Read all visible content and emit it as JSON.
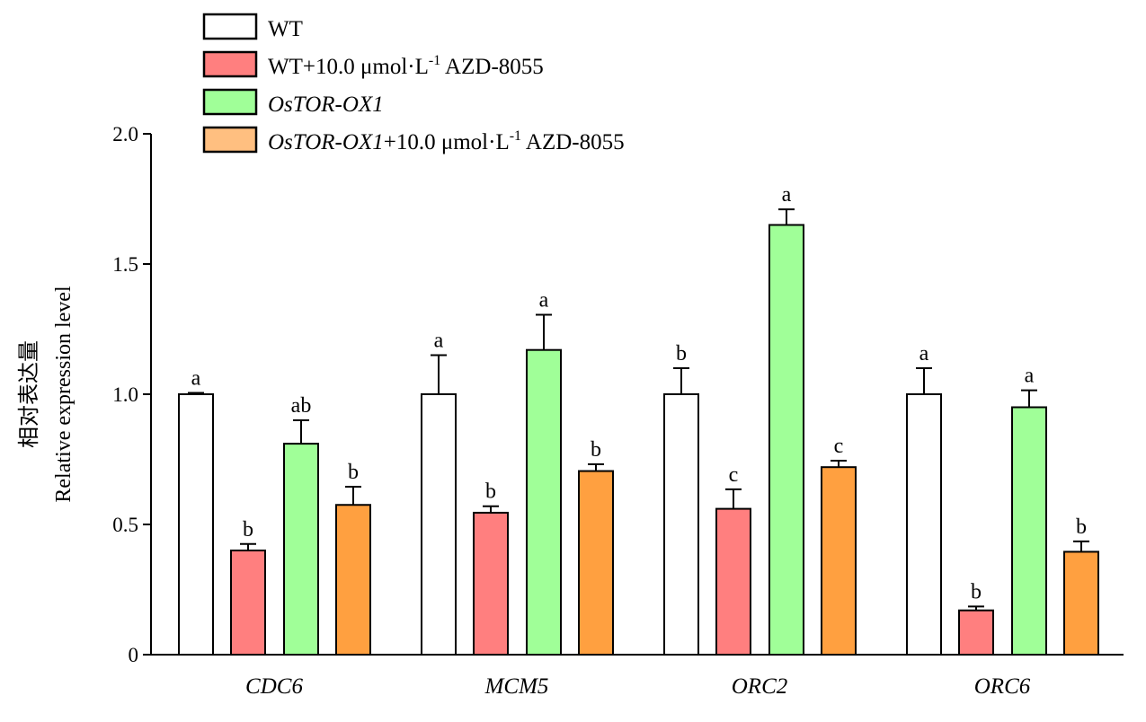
{
  "chart_data": {
    "type": "bar",
    "title": "",
    "xlabel": "",
    "ylabel_cn": "相对表达量",
    "ylabel": "Relative expression level",
    "ylim": [
      0,
      2.0
    ],
    "yticks": [
      0,
      0.5,
      1.0,
      1.5,
      2.0
    ],
    "ytick_labels": [
      "0",
      "0.5",
      "1.0",
      "1.5",
      "2.0"
    ],
    "grid": false,
    "legend_position": "top-left",
    "categories": [
      "CDC6",
      "MCM5",
      "ORC2",
      "ORC6"
    ],
    "series": [
      {
        "name": "WT",
        "italic": "",
        "pre": "WT",
        "sup": "",
        "post": "",
        "color": "#ffffff",
        "legend_color": "#ffffff",
        "values": [
          1.0,
          1.0,
          1.0,
          1.0
        ],
        "errors": [
          0.005,
          0.15,
          0.1,
          0.1
        ],
        "letters": [
          "a",
          "a",
          "b",
          "a"
        ]
      },
      {
        "name": "WT+10.0 μmol·L-1 AZD-8055",
        "italic": "",
        "pre": "WT+10.0 μmol·L",
        "sup": "-1",
        "post": " AZD-8055",
        "color": "#ff7f7f",
        "legend_color": "#ff7f7f",
        "values": [
          0.4,
          0.545,
          0.56,
          0.17
        ],
        "errors": [
          0.025,
          0.025,
          0.075,
          0.015
        ],
        "letters": [
          "b",
          "b",
          "c",
          "b"
        ]
      },
      {
        "name": "OsTOR-OX1",
        "italic": "OsTOR-OX1",
        "pre": "",
        "sup": "",
        "post": "",
        "color": "#a0ff98",
        "legend_color": "#a0ff98",
        "values": [
          0.81,
          1.17,
          1.65,
          0.95
        ],
        "errors": [
          0.09,
          0.135,
          0.06,
          0.065
        ],
        "letters": [
          "ab",
          "a",
          "a",
          "a"
        ]
      },
      {
        "name": "OsTOR-OX1+10.0 μmol·L-1 AZD-8055",
        "italic": "OsTOR-OX1",
        "pre": "+10.0 μmol·L",
        "sup": "-1",
        "post": " AZD-8055",
        "color": "#ffa040",
        "legend_color": "#ffbf80",
        "values": [
          0.575,
          0.705,
          0.72,
          0.395
        ],
        "errors": [
          0.07,
          0.026,
          0.025,
          0.04
        ],
        "letters": [
          "b",
          "b",
          "c",
          "b"
        ]
      }
    ]
  }
}
